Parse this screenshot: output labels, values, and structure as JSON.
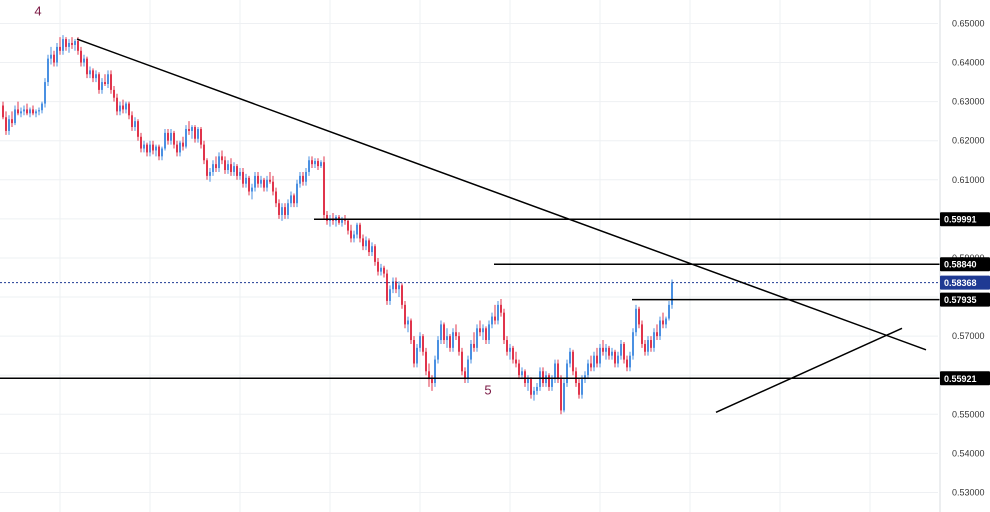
{
  "chart_data": {
    "type": "candlestick",
    "ylim": [
      0.525,
      0.656
    ],
    "y_ticks": [
      "0.65000",
      "0.64000",
      "0.63000",
      "0.62000",
      "0.61000",
      "0.60000",
      "0.59000",
      "0.58000",
      "0.57000",
      "0.56000",
      "0.55000",
      "0.54000",
      "0.53000"
    ],
    "grid": true,
    "colors": {
      "up": "#4a90e2",
      "down": "#e0344b",
      "line": "#000000",
      "current": "#1f3a93",
      "wave_label": "#7b1a45",
      "grid": "#eef0f3"
    },
    "wave_labels": [
      {
        "text": "4",
        "bar": 12,
        "y": 0.652
      },
      {
        "text": "5",
        "bar": 162,
        "y": 0.555
      }
    ],
    "levels": [
      {
        "label": "0.59991",
        "value": 0.59991,
        "from_bar": 104
      },
      {
        "label": "0.58840",
        "value": 0.5884,
        "from_bar": 164
      },
      {
        "label": "0.57935",
        "value": 0.57935,
        "from_bar": 210
      },
      {
        "label": "0.55921",
        "value": 0.55921,
        "from_bar": 0
      }
    ],
    "current_price": {
      "label": "0.58368",
      "value": 0.58368
    },
    "trendlines": [
      {
        "name": "downtrend",
        "from": {
          "bar": 25,
          "y": 0.646
        },
        "to": {
          "bar": 308,
          "y": 0.5665
        }
      },
      {
        "name": "rising-support",
        "from": {
          "bar": 238,
          "y": 0.5505
        },
        "to": {
          "bar": 300,
          "y": 0.572
        }
      }
    ],
    "candles": [
      [
        0.629,
        0.63,
        0.6255,
        0.626
      ],
      [
        0.626,
        0.6275,
        0.6215,
        0.6225
      ],
      [
        0.6225,
        0.6265,
        0.6215,
        0.6255
      ],
      [
        0.6255,
        0.6275,
        0.6235,
        0.6245
      ],
      [
        0.6245,
        0.629,
        0.624,
        0.628
      ],
      [
        0.628,
        0.63,
        0.6265,
        0.627
      ],
      [
        0.627,
        0.6285,
        0.626,
        0.6275
      ],
      [
        0.6275,
        0.629,
        0.6265,
        0.628
      ],
      [
        0.628,
        0.6295,
        0.6265,
        0.627
      ],
      [
        0.627,
        0.6285,
        0.626,
        0.628
      ],
      [
        0.628,
        0.629,
        0.6265,
        0.627
      ],
      [
        0.627,
        0.628,
        0.626,
        0.6275
      ],
      [
        0.6275,
        0.6285,
        0.6265,
        0.6278
      ],
      [
        0.6278,
        0.63,
        0.627,
        0.6295
      ],
      [
        0.6295,
        0.636,
        0.6285,
        0.635
      ],
      [
        0.635,
        0.642,
        0.634,
        0.641
      ],
      [
        0.641,
        0.644,
        0.6395,
        0.642
      ],
      [
        0.642,
        0.643,
        0.639,
        0.64
      ],
      [
        0.64,
        0.645,
        0.639,
        0.644
      ],
      [
        0.644,
        0.6465,
        0.642,
        0.643
      ],
      [
        0.643,
        0.647,
        0.642,
        0.646
      ],
      [
        0.646,
        0.6465,
        0.643,
        0.644
      ],
      [
        0.644,
        0.646,
        0.6425,
        0.645
      ],
      [
        0.645,
        0.6465,
        0.6435,
        0.6445
      ],
      [
        0.6445,
        0.646,
        0.643,
        0.6455
      ],
      [
        0.6455,
        0.6465,
        0.642,
        0.643
      ],
      [
        0.643,
        0.644,
        0.639,
        0.64
      ],
      [
        0.64,
        0.642,
        0.639,
        0.641
      ],
      [
        0.641,
        0.6415,
        0.636,
        0.637
      ],
      [
        0.637,
        0.639,
        0.636,
        0.638
      ],
      [
        0.638,
        0.6385,
        0.635,
        0.636
      ],
      [
        0.636,
        0.638,
        0.635,
        0.637
      ],
      [
        0.637,
        0.6375,
        0.632,
        0.633
      ],
      [
        0.633,
        0.636,
        0.632,
        0.635
      ],
      [
        0.635,
        0.637,
        0.634,
        0.6345
      ],
      [
        0.6345,
        0.638,
        0.6335,
        0.637
      ],
      [
        0.637,
        0.638,
        0.632,
        0.633
      ],
      [
        0.633,
        0.634,
        0.63,
        0.631
      ],
      [
        0.631,
        0.632,
        0.6265,
        0.6275
      ],
      [
        0.6275,
        0.63,
        0.6265,
        0.629
      ],
      [
        0.629,
        0.6305,
        0.627,
        0.628
      ],
      [
        0.628,
        0.63,
        0.627,
        0.6295
      ],
      [
        0.6295,
        0.63,
        0.6255,
        0.6265
      ],
      [
        0.6265,
        0.6275,
        0.6225,
        0.6235
      ],
      [
        0.6235,
        0.626,
        0.6225,
        0.625
      ],
      [
        0.625,
        0.6255,
        0.62,
        0.621
      ],
      [
        0.621,
        0.622,
        0.617,
        0.618
      ],
      [
        0.618,
        0.62,
        0.617,
        0.619
      ],
      [
        0.619,
        0.6195,
        0.616,
        0.617
      ],
      [
        0.617,
        0.62,
        0.616,
        0.619
      ],
      [
        0.619,
        0.62,
        0.6165,
        0.6175
      ],
      [
        0.6175,
        0.619,
        0.616,
        0.6185
      ],
      [
        0.6185,
        0.619,
        0.615,
        0.616
      ],
      [
        0.616,
        0.6185,
        0.615,
        0.618
      ],
      [
        0.618,
        0.623,
        0.6175,
        0.622
      ],
      [
        0.622,
        0.623,
        0.619,
        0.62
      ],
      [
        0.62,
        0.623,
        0.619,
        0.622
      ],
      [
        0.622,
        0.6225,
        0.618,
        0.619
      ],
      [
        0.619,
        0.62,
        0.616,
        0.617
      ],
      [
        0.617,
        0.62,
        0.616,
        0.6195
      ],
      [
        0.6195,
        0.621,
        0.6175,
        0.6185
      ],
      [
        0.6185,
        0.624,
        0.618,
        0.623
      ],
      [
        0.623,
        0.625,
        0.6215,
        0.6225
      ],
      [
        0.6225,
        0.624,
        0.6205,
        0.6235
      ],
      [
        0.6235,
        0.624,
        0.6195,
        0.6205
      ],
      [
        0.6205,
        0.6235,
        0.6195,
        0.623
      ],
      [
        0.623,
        0.6235,
        0.618,
        0.619
      ],
      [
        0.619,
        0.62,
        0.614,
        0.615
      ],
      [
        0.615,
        0.6155,
        0.61,
        0.611
      ],
      [
        0.611,
        0.613,
        0.6095,
        0.612
      ],
      [
        0.612,
        0.615,
        0.611,
        0.614
      ],
      [
        0.614,
        0.616,
        0.612,
        0.613
      ],
      [
        0.613,
        0.617,
        0.612,
        0.616
      ],
      [
        0.616,
        0.6175,
        0.614,
        0.615
      ],
      [
        0.615,
        0.616,
        0.6115,
        0.6125
      ],
      [
        0.6125,
        0.615,
        0.6115,
        0.614
      ],
      [
        0.614,
        0.6155,
        0.611,
        0.612
      ],
      [
        0.612,
        0.6145,
        0.611,
        0.6135
      ],
      [
        0.6135,
        0.614,
        0.61,
        0.611
      ],
      [
        0.611,
        0.613,
        0.61,
        0.612
      ],
      [
        0.612,
        0.613,
        0.608,
        0.609
      ],
      [
        0.609,
        0.6115,
        0.608,
        0.6105
      ],
      [
        0.6105,
        0.611,
        0.606,
        0.607
      ],
      [
        0.607,
        0.609,
        0.605,
        0.608
      ],
      [
        0.608,
        0.612,
        0.607,
        0.611
      ],
      [
        0.611,
        0.612,
        0.608,
        0.609
      ],
      [
        0.609,
        0.611,
        0.608,
        0.61
      ],
      [
        0.61,
        0.6105,
        0.607,
        0.608
      ],
      [
        0.608,
        0.611,
        0.607,
        0.61
      ],
      [
        0.61,
        0.612,
        0.609,
        0.6095
      ],
      [
        0.6095,
        0.611,
        0.606,
        0.607
      ],
      [
        0.607,
        0.608,
        0.603,
        0.604
      ],
      [
        0.604,
        0.605,
        0.6,
        0.601
      ],
      [
        0.601,
        0.604,
        0.5995,
        0.603
      ],
      [
        0.603,
        0.604,
        0.6,
        0.601
      ],
      [
        0.601,
        0.605,
        0.6,
        0.604
      ],
      [
        0.604,
        0.607,
        0.603,
        0.606
      ],
      [
        0.606,
        0.6065,
        0.603,
        0.604
      ],
      [
        0.604,
        0.61,
        0.603,
        0.609
      ],
      [
        0.609,
        0.612,
        0.608,
        0.611
      ],
      [
        0.611,
        0.612,
        0.6085,
        0.6095
      ],
      [
        0.6095,
        0.613,
        0.6085,
        0.612
      ],
      [
        0.612,
        0.616,
        0.611,
        0.615
      ],
      [
        0.615,
        0.616,
        0.613,
        0.614
      ],
      [
        0.614,
        0.6155,
        0.613,
        0.6148
      ],
      [
        0.6148,
        0.6155,
        0.6125,
        0.6135
      ],
      [
        0.6135,
        0.615,
        0.613,
        0.6145
      ],
      [
        0.6145,
        0.616,
        0.6,
        0.601
      ],
      [
        0.601,
        0.602,
        0.5985,
        0.5995
      ],
      [
        0.5995,
        0.601,
        0.598,
        0.6
      ],
      [
        0.6,
        0.6015,
        0.5985,
        0.5995
      ],
      [
        0.5995,
        0.601,
        0.598,
        0.6005
      ],
      [
        0.6005,
        0.601,
        0.5985,
        0.599
      ],
      [
        0.599,
        0.6005,
        0.598,
        0.6
      ],
      [
        0.6,
        0.601,
        0.5985,
        0.5995
      ],
      [
        0.5995,
        0.6,
        0.596,
        0.597
      ],
      [
        0.597,
        0.5985,
        0.594,
        0.595
      ],
      [
        0.595,
        0.597,
        0.594,
        0.596
      ],
      [
        0.596,
        0.599,
        0.595,
        0.5985
      ],
      [
        0.5985,
        0.599,
        0.594,
        0.595
      ],
      [
        0.595,
        0.596,
        0.592,
        0.593
      ],
      [
        0.593,
        0.5955,
        0.592,
        0.5945
      ],
      [
        0.5945,
        0.595,
        0.5905,
        0.5915
      ],
      [
        0.5915,
        0.594,
        0.5905,
        0.593
      ],
      [
        0.593,
        0.5935,
        0.588,
        0.589
      ],
      [
        0.589,
        0.59,
        0.5855,
        0.5865
      ],
      [
        0.5865,
        0.5885,
        0.5855,
        0.5875
      ],
      [
        0.5875,
        0.588,
        0.585,
        0.586
      ],
      [
        0.586,
        0.587,
        0.578,
        0.579
      ],
      [
        0.579,
        0.583,
        0.578,
        0.582
      ],
      [
        0.582,
        0.585,
        0.581,
        0.584
      ],
      [
        0.584,
        0.585,
        0.581,
        0.582
      ],
      [
        0.582,
        0.584,
        0.58,
        0.583
      ],
      [
        0.583,
        0.5835,
        0.577,
        0.578
      ],
      [
        0.578,
        0.579,
        0.572,
        0.573
      ],
      [
        0.573,
        0.575,
        0.571,
        0.574
      ],
      [
        0.574,
        0.5745,
        0.568,
        0.569
      ],
      [
        0.569,
        0.57,
        0.562,
        0.563
      ],
      [
        0.563,
        0.568,
        0.562,
        0.567
      ],
      [
        0.567,
        0.571,
        0.566,
        0.57
      ],
      [
        0.57,
        0.5705,
        0.565,
        0.566
      ],
      [
        0.566,
        0.567,
        0.56,
        0.561
      ],
      [
        0.561,
        0.563,
        0.557,
        0.559
      ],
      [
        0.559,
        0.56,
        0.556,
        0.558
      ],
      [
        0.558,
        0.565,
        0.557,
        0.564
      ],
      [
        0.564,
        0.57,
        0.563,
        0.569
      ],
      [
        0.569,
        0.574,
        0.568,
        0.573
      ],
      [
        0.573,
        0.5735,
        0.568,
        0.569
      ],
      [
        0.569,
        0.572,
        0.567,
        0.57
      ],
      [
        0.57,
        0.5705,
        0.566,
        0.567
      ],
      [
        0.567,
        0.572,
        0.566,
        0.571
      ],
      [
        0.571,
        0.573,
        0.569,
        0.57
      ],
      [
        0.57,
        0.571,
        0.565,
        0.566
      ],
      [
        0.566,
        0.567,
        0.56,
        0.561
      ],
      [
        0.561,
        0.562,
        0.558,
        0.559
      ],
      [
        0.559,
        0.565,
        0.558,
        0.564
      ],
      [
        0.564,
        0.569,
        0.563,
        0.568
      ],
      [
        0.568,
        0.571,
        0.566,
        0.567
      ],
      [
        0.567,
        0.573,
        0.566,
        0.572
      ],
      [
        0.572,
        0.574,
        0.57,
        0.571
      ],
      [
        0.571,
        0.573,
        0.569,
        0.572
      ],
      [
        0.572,
        0.5725,
        0.568,
        0.569
      ],
      [
        0.569,
        0.574,
        0.568,
        0.573
      ],
      [
        0.573,
        0.576,
        0.572,
        0.575
      ],
      [
        0.575,
        0.578,
        0.573,
        0.574
      ],
      [
        0.574,
        0.579,
        0.573,
        0.578
      ],
      [
        0.578,
        0.5795,
        0.575,
        0.576
      ],
      [
        0.576,
        0.577,
        0.568,
        0.569
      ],
      [
        0.569,
        0.57,
        0.565,
        0.566
      ],
      [
        0.566,
        0.568,
        0.564,
        0.567
      ],
      [
        0.567,
        0.5675,
        0.563,
        0.564
      ],
      [
        0.564,
        0.566,
        0.562,
        0.563
      ],
      [
        0.563,
        0.564,
        0.559,
        0.56
      ],
      [
        0.56,
        0.562,
        0.559,
        0.561
      ],
      [
        0.561,
        0.5615,
        0.557,
        0.558
      ],
      [
        0.558,
        0.56,
        0.556,
        0.559
      ],
      [
        0.559,
        0.5595,
        0.554,
        0.555
      ],
      [
        0.555,
        0.557,
        0.5535,
        0.556
      ],
      [
        0.556,
        0.558,
        0.555,
        0.557
      ],
      [
        0.557,
        0.562,
        0.556,
        0.561
      ],
      [
        0.561,
        0.562,
        0.557,
        0.558
      ],
      [
        0.558,
        0.561,
        0.557,
        0.56
      ],
      [
        0.56,
        0.5605,
        0.556,
        0.557
      ],
      [
        0.557,
        0.56,
        0.556,
        0.559
      ],
      [
        0.559,
        0.564,
        0.558,
        0.563
      ],
      [
        0.563,
        0.564,
        0.558,
        0.559
      ],
      [
        0.559,
        0.56,
        0.55,
        0.551
      ],
      [
        0.551,
        0.559,
        0.5505,
        0.558
      ],
      [
        0.558,
        0.564,
        0.557,
        0.563
      ],
      [
        0.563,
        0.567,
        0.562,
        0.566
      ],
      [
        0.566,
        0.5665,
        0.56,
        0.561
      ],
      [
        0.561,
        0.562,
        0.557,
        0.558
      ],
      [
        0.558,
        0.559,
        0.554,
        0.555
      ],
      [
        0.555,
        0.56,
        0.554,
        0.559
      ],
      [
        0.559,
        0.561,
        0.558,
        0.56
      ],
      [
        0.56,
        0.564,
        0.559,
        0.563
      ],
      [
        0.563,
        0.565,
        0.561,
        0.562
      ],
      [
        0.562,
        0.566,
        0.561,
        0.565
      ],
      [
        0.565,
        0.567,
        0.562,
        0.563
      ],
      [
        0.563,
        0.568,
        0.562,
        0.567
      ],
      [
        0.567,
        0.569,
        0.565,
        0.566
      ],
      [
        0.566,
        0.568,
        0.564,
        0.567
      ],
      [
        0.567,
        0.5675,
        0.564,
        0.565
      ],
      [
        0.565,
        0.567,
        0.564,
        0.566
      ],
      [
        0.566,
        0.5665,
        0.562,
        0.563
      ],
      [
        0.563,
        0.566,
        0.562,
        0.565
      ],
      [
        0.565,
        0.569,
        0.564,
        0.568
      ],
      [
        0.568,
        0.5685,
        0.563,
        0.564
      ],
      [
        0.564,
        0.565,
        0.561,
        0.562
      ],
      [
        0.562,
        0.566,
        0.561,
        0.565
      ],
      [
        0.565,
        0.572,
        0.564,
        0.571
      ],
      [
        0.571,
        0.578,
        0.57,
        0.577
      ],
      [
        0.577,
        0.5775,
        0.572,
        0.573
      ],
      [
        0.573,
        0.574,
        0.567,
        0.568
      ],
      [
        0.568,
        0.569,
        0.565,
        0.566
      ],
      [
        0.566,
        0.57,
        0.565,
        0.569
      ],
      [
        0.569,
        0.57,
        0.566,
        0.567
      ],
      [
        0.567,
        0.572,
        0.566,
        0.571
      ],
      [
        0.571,
        0.573,
        0.569,
        0.57
      ],
      [
        0.57,
        0.575,
        0.569,
        0.574
      ],
      [
        0.574,
        0.576,
        0.572,
        0.573
      ],
      [
        0.573,
        0.575,
        0.572,
        0.5745
      ],
      [
        0.5745,
        0.579,
        0.574,
        0.578
      ],
      [
        0.578,
        0.5845,
        0.577,
        0.5837
      ]
    ]
  }
}
